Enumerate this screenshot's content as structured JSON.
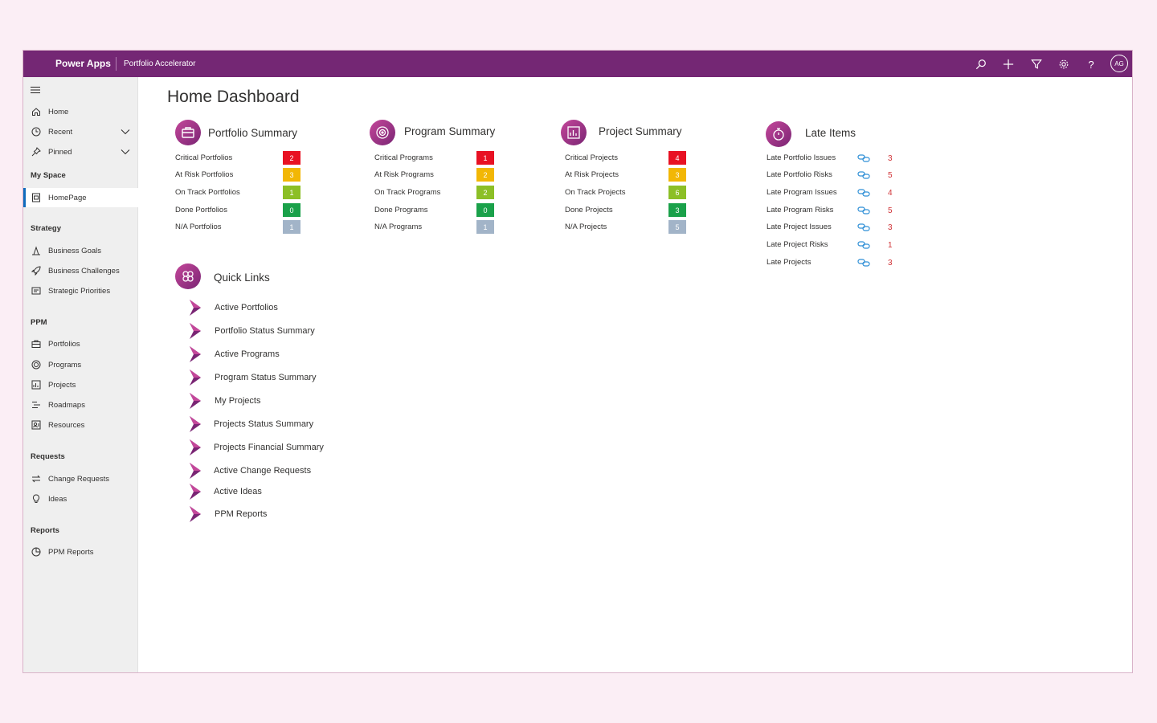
{
  "header": {
    "brand": "Power Apps",
    "app_name": "Portfolio Accelerator",
    "avatar_initials": "AG",
    "icons": [
      "search-icon",
      "add-icon",
      "filter-icon",
      "settings-icon",
      "help-icon"
    ]
  },
  "sidebar": {
    "top_items": [
      {
        "label": "Home",
        "icon": "home-icon"
      },
      {
        "label": "Recent",
        "icon": "clock-icon"
      },
      {
        "label": "Pinned",
        "icon": "pin-icon"
      }
    ],
    "my_space": {
      "title": "My Space",
      "items": [
        {
          "label": "HomePage",
          "icon": "dashboard-icon"
        }
      ]
    },
    "strategy": {
      "title": "Strategy",
      "items": [
        {
          "label": "Business Goals",
          "icon": "goals-icon"
        },
        {
          "label": "Business Challenges",
          "icon": "rocket-icon"
        },
        {
          "label": "Strategic Priorities",
          "icon": "priorities-icon"
        }
      ]
    },
    "ppm": {
      "title": "PPM",
      "items": [
        {
          "label": "Portfolios",
          "icon": "briefcase-icon"
        },
        {
          "label": "Programs",
          "icon": "program-icon"
        },
        {
          "label": "Projects",
          "icon": "project-icon"
        },
        {
          "label": "Roadmaps",
          "icon": "roadmap-icon"
        },
        {
          "label": "Resources",
          "icon": "resources-icon"
        }
      ]
    },
    "requests": {
      "title": "Requests",
      "items": [
        {
          "label": "Change Requests",
          "icon": "swap-icon"
        },
        {
          "label": "Ideas",
          "icon": "lightbulb-icon"
        }
      ]
    },
    "reports": {
      "title": "Reports",
      "items": [
        {
          "label": "PPM Reports",
          "icon": "report-icon"
        }
      ]
    }
  },
  "main": {
    "title": "Home Dashboard",
    "portfolio_summary": {
      "title": "Portfolio Summary",
      "rows": [
        {
          "label": "Critical Portfolios",
          "count": "2",
          "color": "#e81123"
        },
        {
          "label": "At Risk Portfolios",
          "count": "3",
          "color": "#f2b705"
        },
        {
          "label": "On Track Portfolios",
          "count": "1",
          "color": "#8cbf26"
        },
        {
          "label": "Done Portfolios",
          "count": "0",
          "color": "#1aa14a"
        },
        {
          "label": "N/A Portfolios",
          "count": "1",
          "color": "#a2b4c8"
        }
      ]
    },
    "program_summary": {
      "title": "Program Summary",
      "rows": [
        {
          "label": "Critical Programs",
          "count": "1",
          "color": "#e81123"
        },
        {
          "label": "At Risk Programs",
          "count": "2",
          "color": "#f2b705"
        },
        {
          "label": "On Track Programs",
          "count": "2",
          "color": "#8cbf26"
        },
        {
          "label": "Done Programs",
          "count": "0",
          "color": "#1aa14a"
        },
        {
          "label": "N/A Programs",
          "count": "1",
          "color": "#a2b4c8"
        }
      ]
    },
    "project_summary": {
      "title": "Project Summary",
      "rows": [
        {
          "label": "Critical Projects",
          "count": "4",
          "color": "#e81123"
        },
        {
          "label": "At Risk Projects",
          "count": "3",
          "color": "#f2b705"
        },
        {
          "label": "On Track Projects",
          "count": "6",
          "color": "#8cbf26"
        },
        {
          "label": "Done Projects",
          "count": "3",
          "color": "#1aa14a"
        },
        {
          "label": "N/A Projects",
          "count": "5",
          "color": "#a2b4c8"
        }
      ]
    },
    "late_items": {
      "title": "Late Items",
      "rows": [
        {
          "label": "Late Portfolio Issues",
          "count": "3"
        },
        {
          "label": "Late Portfolio Risks",
          "count": "5"
        },
        {
          "label": "Late Program Issues",
          "count": "4"
        },
        {
          "label": "Late Program Risks",
          "count": "5"
        },
        {
          "label": "Late Project Issues",
          "count": "3"
        },
        {
          "label": "Late Project Risks",
          "count": "1"
        },
        {
          "label": "Late Projects",
          "count": "3"
        }
      ]
    },
    "quick_links": {
      "title": "Quick Links",
      "items": [
        "Active Portfolios",
        "Portfolio Status Summary",
        "Active Programs",
        "Program Status Summary",
        "My Projects",
        "Projects Status Summary",
        "Projects Financial Summary",
        "Active Change Requests",
        "Active Ideas",
        "PPM Reports"
      ]
    }
  },
  "colors": {
    "header_bg": "#742774",
    "accent": "#c4479a",
    "late_count": "#d13438",
    "link_icon": "#2f8fd6"
  }
}
